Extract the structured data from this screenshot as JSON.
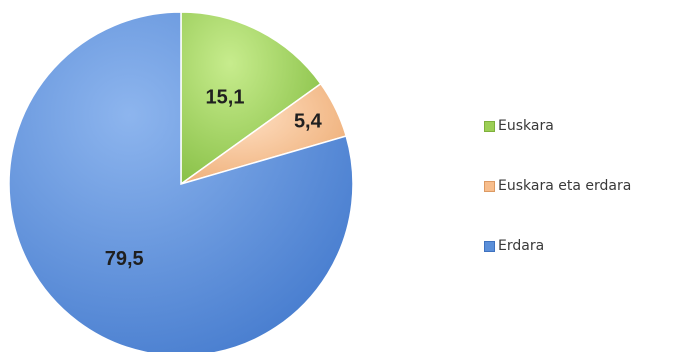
{
  "chart_data": {
    "type": "pie",
    "categories": [
      "Euskara",
      "Euskara eta erdara",
      "Erdara"
    ],
    "values": [
      15.1,
      5.4,
      79.5
    ],
    "value_labels": [
      "15,1",
      "5,4",
      "79,5"
    ],
    "colors": [
      "#9ccf55",
      "#f7bd8c",
      "#5b8fd9"
    ],
    "title": "",
    "legend_position": "right",
    "start_angle": "12 o'clock",
    "direction": "clockwise"
  }
}
